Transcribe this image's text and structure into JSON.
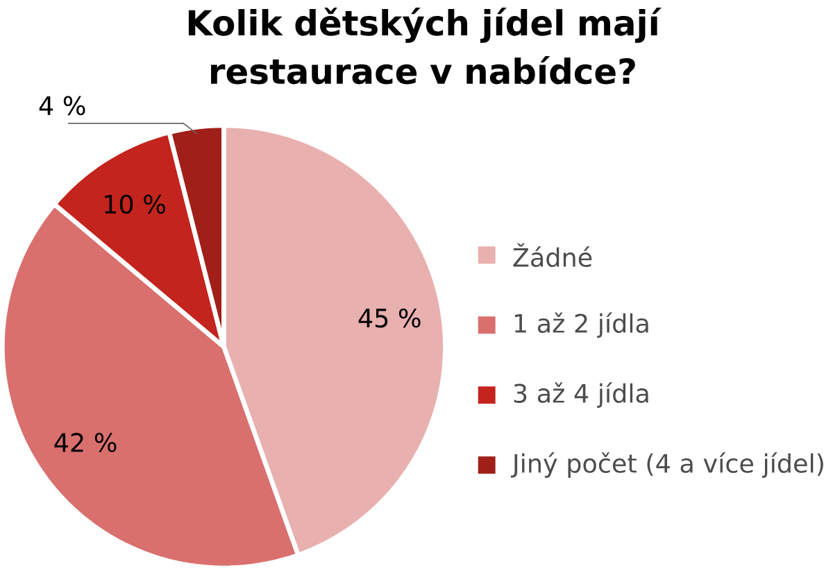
{
  "chart_data": {
    "type": "pie",
    "title": "Kolik dětských jídel mají restaurace v nabídce?",
    "categories": [
      "Žádné",
      "1 až 2 jídla",
      "3 až 4 jídla",
      "Jiný počet (4 a více jídel)"
    ],
    "values": [
      45,
      42,
      10,
      4
    ],
    "colors": [
      "#e8b0ae",
      "#d9706e",
      "#c3241d",
      "#a11f19"
    ],
    "value_labels": [
      "45 %",
      "42 %",
      "10 %",
      "4 %"
    ],
    "legend": "right"
  }
}
